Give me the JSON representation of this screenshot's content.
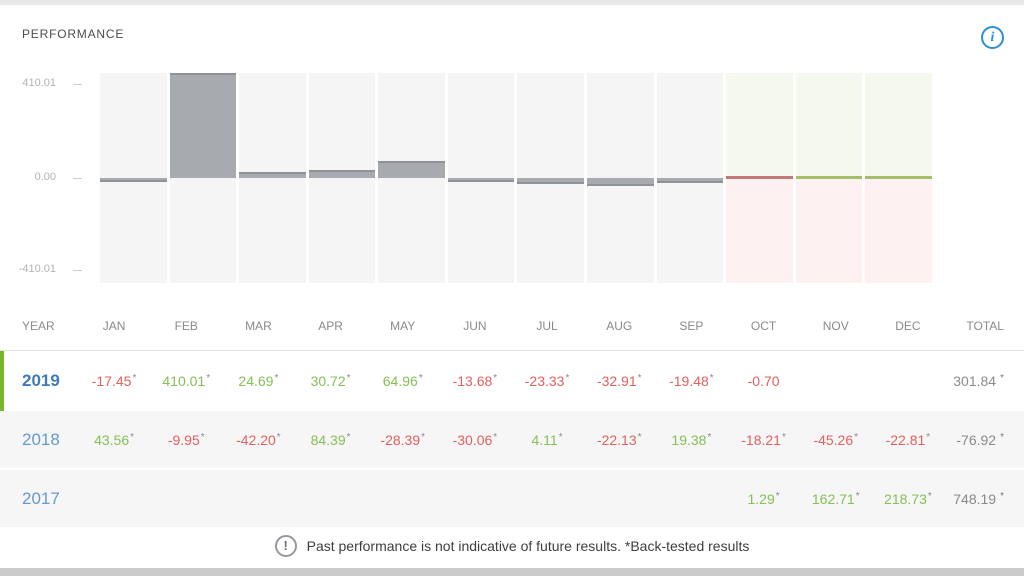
{
  "header": {
    "title": "PERFORMANCE",
    "info_icon": "i"
  },
  "chart_data": {
    "type": "bar",
    "title": "PERFORMANCE",
    "categories": [
      "JAN",
      "FEB",
      "MAR",
      "APR",
      "MAY",
      "JUN",
      "JUL",
      "AUG",
      "SEP",
      "OCT",
      "NOV",
      "DEC"
    ],
    "displayed_series": "2019",
    "series": [
      {
        "name": "2019",
        "values": [
          -17.45,
          410.01,
          24.69,
          30.72,
          64.96,
          -13.68,
          -23.33,
          -32.91,
          -19.48,
          -0.7,
          null,
          null
        ],
        "total": 301.84
      },
      {
        "name": "2018",
        "values": [
          43.56,
          -9.95,
          -42.2,
          84.39,
          -28.39,
          -30.06,
          4.11,
          -22.13,
          19.38,
          -18.21,
          -45.26,
          -22.81
        ],
        "total": -76.92
      },
      {
        "name": "2017",
        "values": [
          null,
          null,
          null,
          null,
          null,
          null,
          null,
          null,
          null,
          1.29,
          162.71,
          218.73
        ],
        "total": 748.19
      }
    ],
    "ylim": [
      -410.01,
      410.01
    ],
    "y_tick_labels": [
      "410.01",
      "0.00",
      "-410.01"
    ],
    "grid": false,
    "legend": false
  },
  "chart_style": {
    "bar_color": "#a7aaae",
    "bar_cap_color": "#8f9296",
    "column_bg": "#f5f5f5",
    "tint_top": "#f4f8ee",
    "tint_bottom": "#fdf1f2",
    "zero_line_colors": {
      "red": "#c27876",
      "green": "#a4be6c"
    },
    "tinted_months": [
      "OCT",
      "NOV",
      "DEC"
    ],
    "zero_lines": {
      "OCT": "red",
      "NOV": "green",
      "DEC": "green"
    }
  },
  "axis": {
    "max": "410.01",
    "zero": "0.00",
    "min": "-410.01"
  },
  "table": {
    "columns": [
      "YEAR",
      "JAN",
      "FEB",
      "MAR",
      "APR",
      "MAY",
      "JUN",
      "JUL",
      "AUG",
      "SEP",
      "OCT",
      "NOV",
      "DEC",
      "TOTAL"
    ],
    "rows": [
      {
        "year": "2019",
        "selected": true,
        "cells": [
          {
            "t": "-17.45",
            "c": "red",
            "a": true
          },
          {
            "t": "410.01",
            "c": "green",
            "a": true
          },
          {
            "t": "24.69",
            "c": "green",
            "a": true
          },
          {
            "t": "30.72",
            "c": "green",
            "a": true
          },
          {
            "t": "64.96",
            "c": "green",
            "a": true
          },
          {
            "t": "-13.68",
            "c": "red",
            "a": true
          },
          {
            "t": "-23.33",
            "c": "red",
            "a": true
          },
          {
            "t": "-32.91",
            "c": "red",
            "a": true
          },
          {
            "t": "-19.48",
            "c": "red",
            "a": true
          },
          {
            "t": "-0.70",
            "c": "red",
            "a": false
          },
          null,
          null
        ],
        "total": {
          "t": "301.84",
          "a": true
        }
      },
      {
        "year": "2018",
        "selected": false,
        "cells": [
          {
            "t": "43.56",
            "c": "green",
            "a": true
          },
          {
            "t": "-9.95",
            "c": "red",
            "a": true
          },
          {
            "t": "-42.20",
            "c": "red",
            "a": true
          },
          {
            "t": "84.39",
            "c": "green",
            "a": true
          },
          {
            "t": "-28.39",
            "c": "red",
            "a": true
          },
          {
            "t": "-30.06",
            "c": "red",
            "a": true
          },
          {
            "t": "4.11",
            "c": "green",
            "a": true
          },
          {
            "t": "-22.13",
            "c": "red",
            "a": true
          },
          {
            "t": "19.38",
            "c": "green",
            "a": true
          },
          {
            "t": "-18.21",
            "c": "red",
            "a": true
          },
          {
            "t": "-45.26",
            "c": "red",
            "a": true
          },
          {
            "t": "-22.81",
            "c": "red",
            "a": true
          }
        ],
        "total": {
          "t": "-76.92",
          "a": true
        }
      },
      {
        "year": "2017",
        "selected": false,
        "cells": [
          null,
          null,
          null,
          null,
          null,
          null,
          null,
          null,
          null,
          {
            "t": "1.29",
            "c": "green",
            "a": true
          },
          {
            "t": "162.71",
            "c": "green",
            "a": true
          },
          {
            "t": "218.73",
            "c": "green",
            "a": true
          }
        ],
        "total": {
          "t": "748.19",
          "a": true
        }
      }
    ]
  },
  "colors": {
    "green": "#85bf56",
    "red": "#e4605d",
    "total_gray": "#8a8a8a",
    "year_blue": "#6699cc",
    "year_blue_selected": "#3c7bbc",
    "selected_border": "#76b82a",
    "info_blue": "#2b8fd4"
  },
  "disclaimer": {
    "icon": "!",
    "text": "Past performance is not indicative of future results. *Back-tested results"
  }
}
